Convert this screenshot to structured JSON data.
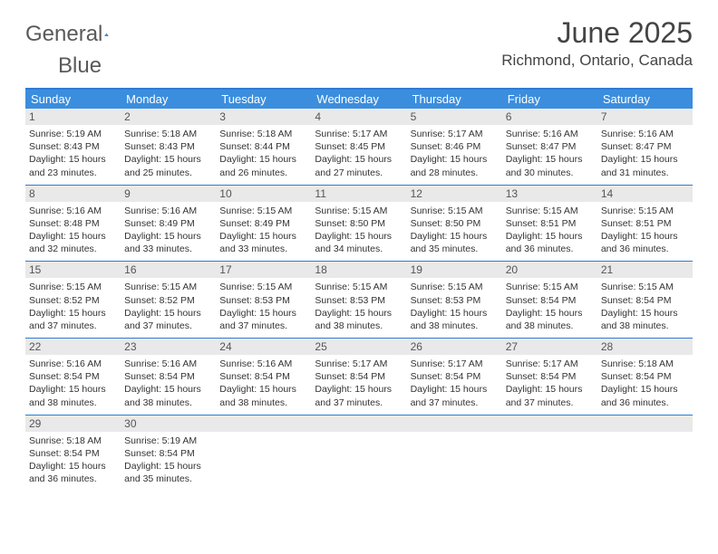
{
  "brand": {
    "word1": "General",
    "word2": "Blue"
  },
  "title": "June 2025",
  "location": "Richmond, Ontario, Canada",
  "colors": {
    "header_bg": "#3b8ede",
    "border": "#2e7cd6",
    "daynum_bg": "#e9e9e9",
    "text": "#333333",
    "brand_gray": "#5a5a5a",
    "brand_blue": "#2e7cd6"
  },
  "fonts": {
    "title_size": 32,
    "location_size": 17,
    "dow_size": 13,
    "body_size": 10.5
  },
  "days_of_week": [
    "Sunday",
    "Monday",
    "Tuesday",
    "Wednesday",
    "Thursday",
    "Friday",
    "Saturday"
  ],
  "weeks": [
    [
      {
        "n": "1",
        "sr": "5:19 AM",
        "ss": "8:43 PM",
        "dl": "15 hours and 23 minutes."
      },
      {
        "n": "2",
        "sr": "5:18 AM",
        "ss": "8:43 PM",
        "dl": "15 hours and 25 minutes."
      },
      {
        "n": "3",
        "sr": "5:18 AM",
        "ss": "8:44 PM",
        "dl": "15 hours and 26 minutes."
      },
      {
        "n": "4",
        "sr": "5:17 AM",
        "ss": "8:45 PM",
        "dl": "15 hours and 27 minutes."
      },
      {
        "n": "5",
        "sr": "5:17 AM",
        "ss": "8:46 PM",
        "dl": "15 hours and 28 minutes."
      },
      {
        "n": "6",
        "sr": "5:16 AM",
        "ss": "8:47 PM",
        "dl": "15 hours and 30 minutes."
      },
      {
        "n": "7",
        "sr": "5:16 AM",
        "ss": "8:47 PM",
        "dl": "15 hours and 31 minutes."
      }
    ],
    [
      {
        "n": "8",
        "sr": "5:16 AM",
        "ss": "8:48 PM",
        "dl": "15 hours and 32 minutes."
      },
      {
        "n": "9",
        "sr": "5:16 AM",
        "ss": "8:49 PM",
        "dl": "15 hours and 33 minutes."
      },
      {
        "n": "10",
        "sr": "5:15 AM",
        "ss": "8:49 PM",
        "dl": "15 hours and 33 minutes."
      },
      {
        "n": "11",
        "sr": "5:15 AM",
        "ss": "8:50 PM",
        "dl": "15 hours and 34 minutes."
      },
      {
        "n": "12",
        "sr": "5:15 AM",
        "ss": "8:50 PM",
        "dl": "15 hours and 35 minutes."
      },
      {
        "n": "13",
        "sr": "5:15 AM",
        "ss": "8:51 PM",
        "dl": "15 hours and 36 minutes."
      },
      {
        "n": "14",
        "sr": "5:15 AM",
        "ss": "8:51 PM",
        "dl": "15 hours and 36 minutes."
      }
    ],
    [
      {
        "n": "15",
        "sr": "5:15 AM",
        "ss": "8:52 PM",
        "dl": "15 hours and 37 minutes."
      },
      {
        "n": "16",
        "sr": "5:15 AM",
        "ss": "8:52 PM",
        "dl": "15 hours and 37 minutes."
      },
      {
        "n": "17",
        "sr": "5:15 AM",
        "ss": "8:53 PM",
        "dl": "15 hours and 37 minutes."
      },
      {
        "n": "18",
        "sr": "5:15 AM",
        "ss": "8:53 PM",
        "dl": "15 hours and 38 minutes."
      },
      {
        "n": "19",
        "sr": "5:15 AM",
        "ss": "8:53 PM",
        "dl": "15 hours and 38 minutes."
      },
      {
        "n": "20",
        "sr": "5:15 AM",
        "ss": "8:54 PM",
        "dl": "15 hours and 38 minutes."
      },
      {
        "n": "21",
        "sr": "5:15 AM",
        "ss": "8:54 PM",
        "dl": "15 hours and 38 minutes."
      }
    ],
    [
      {
        "n": "22",
        "sr": "5:16 AM",
        "ss": "8:54 PM",
        "dl": "15 hours and 38 minutes."
      },
      {
        "n": "23",
        "sr": "5:16 AM",
        "ss": "8:54 PM",
        "dl": "15 hours and 38 minutes."
      },
      {
        "n": "24",
        "sr": "5:16 AM",
        "ss": "8:54 PM",
        "dl": "15 hours and 38 minutes."
      },
      {
        "n": "25",
        "sr": "5:17 AM",
        "ss": "8:54 PM",
        "dl": "15 hours and 37 minutes."
      },
      {
        "n": "26",
        "sr": "5:17 AM",
        "ss": "8:54 PM",
        "dl": "15 hours and 37 minutes."
      },
      {
        "n": "27",
        "sr": "5:17 AM",
        "ss": "8:54 PM",
        "dl": "15 hours and 37 minutes."
      },
      {
        "n": "28",
        "sr": "5:18 AM",
        "ss": "8:54 PM",
        "dl": "15 hours and 36 minutes."
      }
    ],
    [
      {
        "n": "29",
        "sr": "5:18 AM",
        "ss": "8:54 PM",
        "dl": "15 hours and 36 minutes."
      },
      {
        "n": "30",
        "sr": "5:19 AM",
        "ss": "8:54 PM",
        "dl": "15 hours and 35 minutes."
      },
      null,
      null,
      null,
      null,
      null
    ]
  ],
  "labels": {
    "sunrise": "Sunrise:",
    "sunset": "Sunset:",
    "daylight": "Daylight:"
  }
}
